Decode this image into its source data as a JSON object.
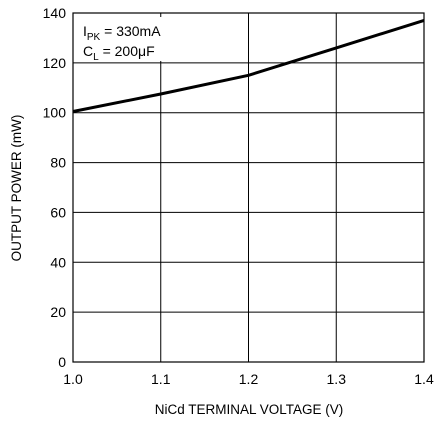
{
  "chart_data": {
    "type": "line",
    "xlabel": "NiCd TERMINAL VOLTAGE (V)",
    "ylabel": "OUTPUT POWER (mW)",
    "xlim": [
      1.0,
      1.4
    ],
    "ylim": [
      0,
      140
    ],
    "x_ticks": [
      "1.0",
      "1.1",
      "1.2",
      "1.3",
      "1.4"
    ],
    "y_ticks": [
      "0",
      "20",
      "40",
      "60",
      "80",
      "100",
      "120",
      "140"
    ],
    "grid": true,
    "series": [
      {
        "x": [
          1.0,
          1.1,
          1.2,
          1.3,
          1.4
        ],
        "y": [
          100.5,
          107.5,
          115,
          126,
          137
        ]
      }
    ],
    "annotations": [
      {
        "main": "I",
        "sub": "PK",
        "rest": " = 330mA"
      },
      {
        "main": "C",
        "sub": "L",
        "rest": " = 200μF"
      }
    ]
  },
  "colors": {
    "line": "#000000",
    "grid": "#000000",
    "background": "#ffffff"
  }
}
